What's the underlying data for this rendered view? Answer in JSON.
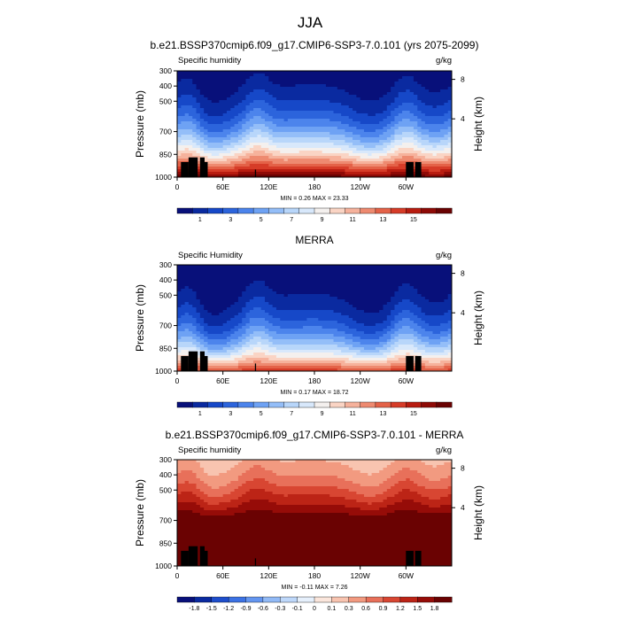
{
  "figure": {
    "season_title": "JJA"
  },
  "chart_data": [
    {
      "type": "heatmap",
      "title": "b.e21.BSSP370cmip6.f09_g17.CMIP6-SSP3-7.0.101 (yrs 2075-2099)",
      "left_label": "Specific humidity",
      "units": "g/kg",
      "ylabel": "Pressure (mb)",
      "ylabel_right": "Height (km)",
      "x_ticks": [
        "0",
        "60E",
        "120E",
        "180",
        "120W",
        "60W"
      ],
      "y_ticks": [
        "300",
        "400",
        "500",
        "700",
        "850",
        "1000"
      ],
      "y_ticks_right": [
        "8",
        "4"
      ],
      "stats": "MIN =   0.26  MAX =  23.33",
      "colorbar_labels": [
        "1",
        "3",
        "5",
        "7",
        "9",
        "11",
        "13",
        "15"
      ],
      "colorbar_levels": [
        0,
        1,
        2,
        3,
        4,
        5,
        6,
        7,
        8,
        9,
        10,
        11,
        12,
        13,
        14,
        15,
        16
      ],
      "field": {
        "surface_value": 17.5,
        "scale_height_factor": 1.0,
        "moist_longitudes": [
          15,
          105,
          300
        ],
        "dry_longitudes": [
          40,
          250
        ]
      }
    },
    {
      "type": "heatmap",
      "title": "MERRA",
      "left_label": "Specific Humidity",
      "units": "g/kg",
      "ylabel": "Pressure (mb)",
      "ylabel_right": "Height (km)",
      "x_ticks": [
        "0",
        "60E",
        "120E",
        "180",
        "120W",
        "60W"
      ],
      "y_ticks": [
        "300",
        "400",
        "500",
        "700",
        "850",
        "1000"
      ],
      "y_ticks_right": [
        "8",
        "4"
      ],
      "stats": "MIN =   0.17  MAX =  18.72",
      "colorbar_labels": [
        "1",
        "3",
        "5",
        "7",
        "9",
        "11",
        "13",
        "15"
      ],
      "colorbar_levels": [
        0,
        1,
        2,
        3,
        4,
        5,
        6,
        7,
        8,
        9,
        10,
        11,
        12,
        13,
        14,
        15,
        16
      ],
      "field": {
        "surface_value": 14.5,
        "scale_height_factor": 0.78,
        "moist_longitudes": [
          15,
          105,
          300
        ],
        "dry_longitudes": [
          40,
          250
        ]
      }
    },
    {
      "type": "heatmap",
      "title": "b.e21.BSSP370cmip6.f09_g17.CMIP6-SSP3-7.0.101 - MERRA",
      "left_label": "Specific humidity",
      "units": "g/kg",
      "ylabel": "Pressure (mb)",
      "ylabel_right": "Height (km)",
      "x_ticks": [
        "0",
        "60E",
        "120E",
        "180",
        "120W",
        "60W"
      ],
      "y_ticks": [
        "300",
        "400",
        "500",
        "700",
        "850",
        "1000"
      ],
      "y_ticks_right": [
        "8",
        "4"
      ],
      "stats": "MIN =  -0.11  MAX =   7.26",
      "colorbar_labels": [
        "-1.8",
        "-1.5",
        "-1.2",
        "-0.9",
        "-0.6",
        "-0.3",
        "-0.1",
        "0",
        "0.1",
        "0.3",
        "0.6",
        "0.9",
        "1.2",
        "1.5",
        "1.8"
      ],
      "colorbar_levels": [
        -1.8,
        -1.5,
        -1.2,
        -0.9,
        -0.6,
        -0.3,
        -0.1,
        0,
        0.1,
        0.3,
        0.6,
        0.9,
        1.2,
        1.5,
        1.8
      ],
      "field": {
        "surface_value": 3.0,
        "scale_height_factor": 1.0,
        "moist_longitudes": [
          15,
          105,
          300
        ],
        "dry_longitudes": [
          40,
          250
        ]
      }
    }
  ],
  "colormaps": {
    "sequential": [
      "#08107a",
      "#0a2aa0",
      "#1648c8",
      "#2c64dc",
      "#4c84ec",
      "#6ea2f4",
      "#94bef8",
      "#b8d6fa",
      "#d8e8fb",
      "#f4f0ee",
      "#fad4c4",
      "#f6b29c",
      "#ee8a70",
      "#e46248",
      "#d63c28",
      "#b81c10",
      "#8e0a06",
      "#6a0202"
    ],
    "diverging": [
      "#08107a",
      "#0a2aa0",
      "#1e4ecc",
      "#3c72e4",
      "#6496f0",
      "#92baf6",
      "#bed8fa",
      "#e6f0fc",
      "#fbe6dc",
      "#f8c4b0",
      "#f29a80",
      "#e8705a",
      "#d84632",
      "#bc2416",
      "#960c08",
      "#6a0202"
    ],
    "land_mask": "#000000"
  }
}
